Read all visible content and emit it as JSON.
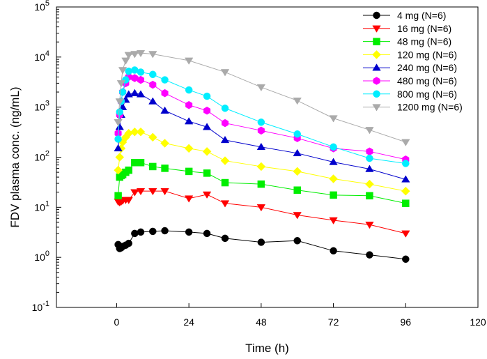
{
  "chart_data": {
    "type": "line",
    "y_scale": "log",
    "xlabel": "Time (h)",
    "ylabel": "FDV plasma conc. (ng/mL)",
    "xlim": [
      -20,
      120
    ],
    "ylim": [
      0.1,
      100000
    ],
    "xticks": [
      0,
      24,
      48,
      72,
      96,
      120
    ],
    "xtick_labels": [
      "0",
      "24",
      "48",
      "72",
      "96",
      "120"
    ],
    "yticks": [
      {
        "value": 0.1,
        "base": "10",
        "exp": "-1"
      },
      {
        "value": 1,
        "base": "10",
        "exp": "0"
      },
      {
        "value": 10,
        "base": "10",
        "exp": "1"
      },
      {
        "value": 100,
        "base": "10",
        "exp": "2"
      },
      {
        "value": 1000,
        "base": "10",
        "exp": "3"
      },
      {
        "value": 10000,
        "base": "10",
        "exp": "4"
      },
      {
        "value": 100000,
        "base": "10",
        "exp": "5"
      }
    ],
    "legend_position": "top-right",
    "series": [
      {
        "name": "4 mg (N=6)",
        "color": "#000000",
        "marker": "circle",
        "x": [
          0.5,
          1,
          1.5,
          2,
          3,
          4,
          6,
          8,
          12,
          16,
          24,
          30,
          36,
          48,
          60,
          72,
          84,
          96
        ],
        "y": [
          1.8,
          1.5,
          1.55,
          1.65,
          1.75,
          1.9,
          3.0,
          3.2,
          3.3,
          3.4,
          3.2,
          3.0,
          2.4,
          2.0,
          2.15,
          1.35,
          1.12,
          0.92
        ]
      },
      {
        "name": "16 mg (N=6)",
        "color": "#ff0000",
        "marker": "triangle-down",
        "x": [
          0.5,
          1,
          1.5,
          2,
          3,
          4,
          6,
          8,
          12,
          16,
          24,
          30,
          36,
          48,
          60,
          72,
          84,
          96
        ],
        "y": [
          13,
          12.5,
          13,
          13.5,
          14,
          14,
          20,
          21,
          21,
          21,
          15,
          18,
          12,
          10,
          7,
          5.5,
          4.5,
          3
        ]
      },
      {
        "name": "48 mg (N=6)",
        "color": "#00ee00",
        "marker": "square",
        "x": [
          0.5,
          1,
          1.5,
          2,
          3,
          4,
          6,
          8,
          12,
          16,
          24,
          30,
          36,
          48,
          60,
          72,
          84,
          96
        ],
        "y": [
          17,
          40,
          43,
          45,
          50,
          55,
          78,
          78,
          65,
          60,
          52,
          48,
          31,
          29,
          22,
          17.5,
          17,
          12
        ]
      },
      {
        "name": "120 mg (N=6)",
        "color": "#ffff00",
        "marker": "diamond",
        "x": [
          0.5,
          1,
          1.5,
          2,
          3,
          4,
          6,
          8,
          12,
          16,
          24,
          30,
          36,
          48,
          60,
          72,
          84,
          96
        ],
        "y": [
          55,
          100,
          150,
          200,
          250,
          300,
          320,
          320,
          250,
          190,
          150,
          130,
          85,
          65,
          52,
          37,
          29,
          21
        ]
      },
      {
        "name": "240 mg (N=6)",
        "color": "#0000cc",
        "marker": "triangle-up",
        "x": [
          0.5,
          1,
          1.5,
          2,
          3,
          4,
          6,
          8,
          12,
          16,
          24,
          30,
          36,
          48,
          60,
          72,
          84,
          96
        ],
        "y": [
          150,
          400,
          700,
          1000,
          1400,
          1800,
          1900,
          1800,
          1300,
          850,
          520,
          400,
          220,
          160,
          120,
          80,
          58,
          36
        ]
      },
      {
        "name": "480 mg (N=6)",
        "color": "#ff00ff",
        "marker": "hexagon",
        "x": [
          0.5,
          1,
          1.5,
          2,
          3,
          4,
          6,
          8,
          12,
          16,
          24,
          30,
          36,
          48,
          60,
          72,
          84,
          96
        ],
        "y": [
          300,
          700,
          1300,
          2000,
          3000,
          4000,
          3800,
          3500,
          2800,
          1900,
          1100,
          850,
          480,
          340,
          240,
          150,
          130,
          90
        ]
      },
      {
        "name": "800 mg (N=6)",
        "color": "#00eeff",
        "marker": "circle",
        "x": [
          0.5,
          1,
          1.5,
          2,
          3,
          4,
          6,
          8,
          12,
          16,
          24,
          30,
          36,
          48,
          60,
          72,
          84,
          96
        ],
        "y": [
          230,
          800,
          1300,
          2000,
          3500,
          5200,
          5500,
          5000,
          4500,
          3500,
          2200,
          1650,
          950,
          500,
          290,
          160,
          95,
          75
        ]
      },
      {
        "name": "1200 mg (N=6)",
        "color": "#aaaaaa",
        "marker": "triangle-down",
        "x": [
          0.5,
          1,
          1.5,
          2,
          3,
          4,
          6,
          8,
          12,
          24,
          36,
          48,
          60,
          72,
          84,
          96
        ],
        "y": [
          500,
          1300,
          3000,
          5500,
          8500,
          11000,
          11500,
          12000,
          11500,
          8500,
          5000,
          2500,
          1350,
          600,
          350,
          200
        ]
      }
    ]
  }
}
